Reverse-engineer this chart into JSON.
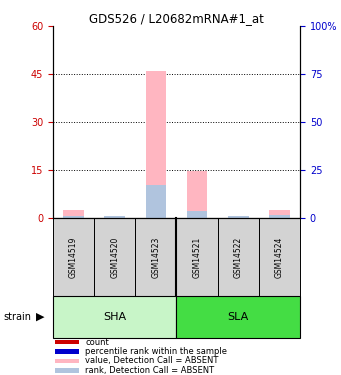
{
  "title": "GDS526 / L20682mRNA#1_at",
  "samples": [
    "GSM14519",
    "GSM14520",
    "GSM14523",
    "GSM14521",
    "GSM14522",
    "GSM14524"
  ],
  "left_ylim": [
    0,
    60
  ],
  "right_ylim": [
    0,
    100
  ],
  "left_yticks": [
    0,
    15,
    30,
    45,
    60
  ],
  "right_yticks": [
    0,
    25,
    50,
    75,
    100
  ],
  "right_yticklabels": [
    "0",
    "25",
    "50",
    "75",
    "100%"
  ],
  "dotted_lines": [
    15,
    30,
    45
  ],
  "bar_data": {
    "GSM14519": {
      "value": 2.5,
      "rank": 1.0
    },
    "GSM14520": {
      "value": 0.5,
      "rank": 0.8
    },
    "GSM14523": {
      "value": 46.0,
      "rank": 17.0
    },
    "GSM14521": {
      "value": 14.5,
      "rank": 3.5
    },
    "GSM14522": {
      "value": 0.5,
      "rank": 0.8
    },
    "GSM14524": {
      "value": 2.5,
      "rank": 1.5
    }
  },
  "value_bar_color": "#ffb6c1",
  "rank_bar_color": "#b0c4de",
  "left_tick_color": "#cc0000",
  "right_tick_color": "#0000cc",
  "sha_color": "#c8f5c8",
  "sla_color": "#44dd44",
  "legend_items": [
    {
      "label": "count",
      "color": "#cc0000"
    },
    {
      "label": "percentile rank within the sample",
      "color": "#0000cc"
    },
    {
      "label": "value, Detection Call = ABSENT",
      "color": "#ffb6c1"
    },
    {
      "label": "rank, Detection Call = ABSENT",
      "color": "#b0c4de"
    }
  ],
  "background_color": "#ffffff"
}
